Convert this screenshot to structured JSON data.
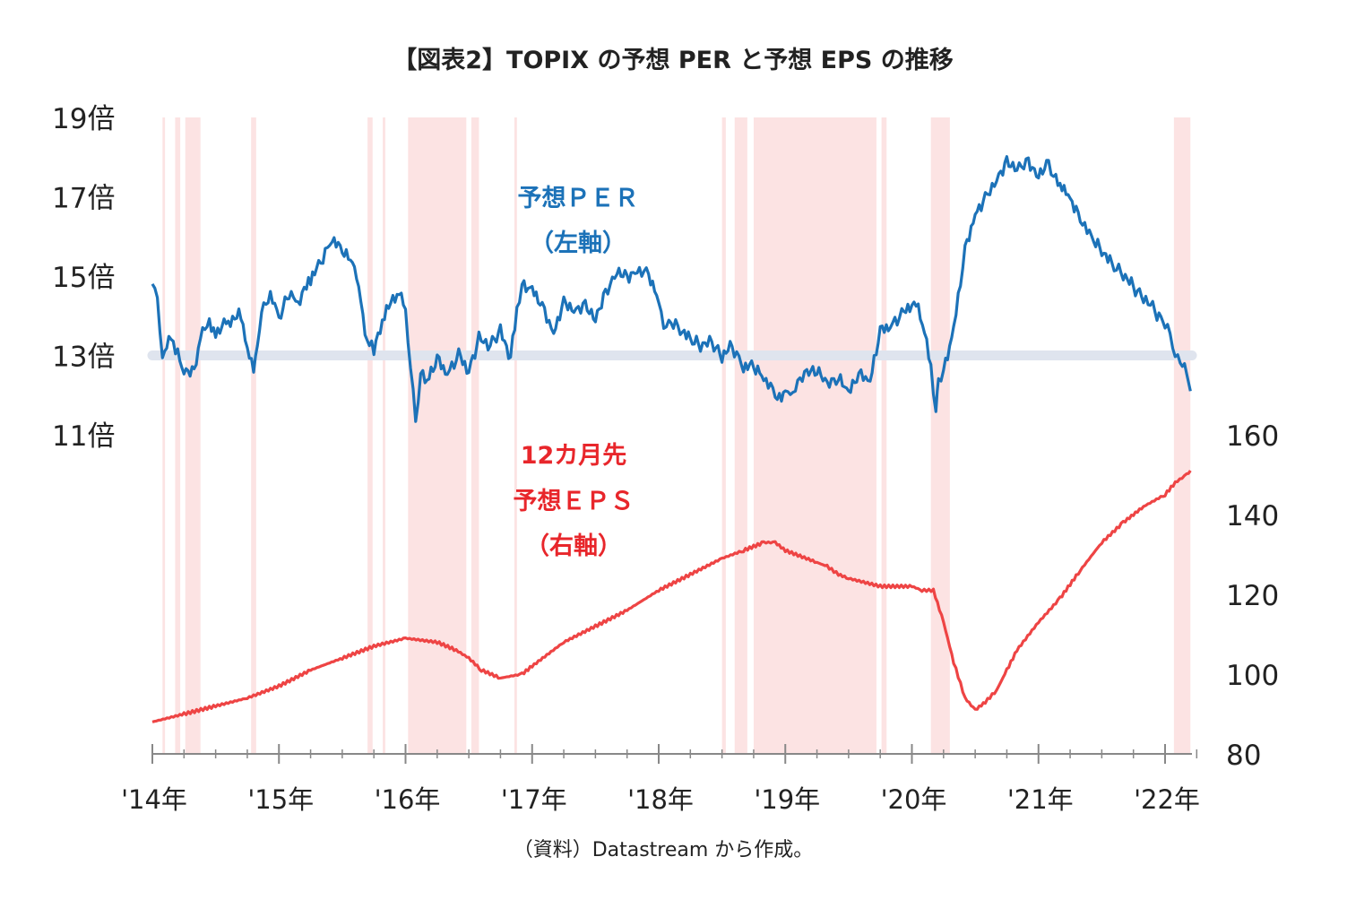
{
  "chart_data": {
    "type": "line",
    "title": "【図表2】TOPIX の予想 PER と予想 EPS の推移",
    "source": "（資料）Datastream から作成。",
    "x_range": [
      "2014-01",
      "2022-03"
    ],
    "x_ticks": [
      "'14年",
      "'15年",
      "'16年",
      "'17年",
      "'18年",
      "'19年",
      "'20年",
      "'21年",
      "'22年"
    ],
    "y_left": {
      "ticks": [
        "19倍",
        "17倍",
        "15倍",
        "13倍",
        "11倍"
      ],
      "ylim": [
        11,
        19
      ]
    },
    "y_right": {
      "ticks": [
        "160",
        "140",
        "120",
        "100",
        "80"
      ],
      "ylim": [
        80,
        160
      ]
    },
    "reference_line": {
      "value": 13,
      "axis": "left",
      "color": "#dfe4ee"
    },
    "annotations": {
      "per": [
        "予想ＰＥＲ",
        "（左軸）"
      ],
      "eps": [
        "12カ月先",
        "予想ＥＰＳ",
        "（右軸）"
      ]
    },
    "colors": {
      "per": "#1c72b8",
      "eps": "#ee4444",
      "shade": "#fbdada",
      "axis": "#888888"
    },
    "series": [
      {
        "key": "per",
        "axis": "left",
        "x": [
          2014.0,
          2014.04,
          2014.08,
          2014.13,
          2014.2,
          2014.25,
          2014.33,
          2014.38,
          2014.45,
          2014.5,
          2014.6,
          2014.7,
          2014.75,
          2014.8,
          2014.83,
          2014.88,
          2014.95,
          2015.0,
          2015.08,
          2015.15,
          2015.25,
          2015.33,
          2015.42,
          2015.5,
          2015.58,
          2015.63,
          2015.68,
          2015.75,
          2015.85,
          2015.95,
          2016.0,
          2016.04,
          2016.08,
          2016.12,
          2016.17,
          2016.25,
          2016.33,
          2016.42,
          2016.5,
          2016.58,
          2016.67,
          2016.75,
          2016.83,
          2016.88,
          2016.92,
          2017.0,
          2017.08,
          2017.17,
          2017.25,
          2017.33,
          2017.42,
          2017.5,
          2017.58,
          2017.67,
          2017.75,
          2017.83,
          2017.92,
          2018.0,
          2018.04,
          2018.08,
          2018.17,
          2018.25,
          2018.33,
          2018.42,
          2018.5,
          2018.58,
          2018.67,
          2018.75,
          2018.83,
          2018.92,
          2018.97,
          2019.0,
          2019.04,
          2019.08,
          2019.17,
          2019.25,
          2019.33,
          2019.42,
          2019.5,
          2019.58,
          2019.67,
          2019.75,
          2019.83,
          2019.92,
          2020.0,
          2020.05,
          2020.1,
          2020.15,
          2020.19,
          2020.21,
          2020.25,
          2020.33,
          2020.42,
          2020.5,
          2020.58,
          2020.67,
          2020.75,
          2020.83,
          2020.92,
          2021.0,
          2021.08,
          2021.12,
          2021.17,
          2021.25,
          2021.33,
          2021.42,
          2021.5,
          2021.58,
          2021.67,
          2021.75,
          2021.83,
          2021.92,
          2022.0,
          2022.04,
          2022.08,
          2022.12,
          2022.17,
          2022.2
        ],
        "values": [
          14.8,
          14.5,
          12.9,
          13.6,
          13.1,
          12.7,
          12.6,
          13.6,
          13.9,
          13.6,
          13.9,
          14.0,
          13.3,
          12.6,
          13.4,
          14.3,
          14.5,
          13.9,
          14.6,
          14.3,
          14.9,
          15.3,
          15.9,
          15.6,
          15.3,
          14.8,
          13.4,
          13.1,
          14.1,
          14.6,
          14.0,
          12.7,
          11.2,
          12.5,
          12.3,
          12.9,
          12.5,
          13.0,
          12.6,
          13.4,
          13.3,
          13.6,
          13.0,
          14.1,
          14.8,
          14.7,
          14.3,
          13.6,
          14.4,
          14.2,
          14.3,
          14.0,
          14.6,
          15.2,
          15.0,
          15.2,
          15.1,
          14.4,
          13.8,
          13.9,
          13.7,
          13.4,
          13.3,
          13.3,
          13.0,
          13.2,
          12.7,
          12.7,
          12.4,
          12.0,
          11.8,
          12.2,
          11.9,
          12.2,
          12.5,
          12.6,
          12.2,
          12.4,
          12.0,
          12.5,
          12.3,
          13.6,
          13.7,
          14.0,
          14.3,
          14.1,
          13.6,
          12.6,
          11.6,
          12.3,
          12.6,
          13.7,
          15.7,
          16.6,
          17.0,
          17.5,
          17.9,
          17.8,
          17.9,
          17.6,
          17.9,
          17.6,
          17.4,
          17.0,
          16.5,
          16.0,
          15.7,
          15.3,
          15.1,
          14.7,
          14.5,
          14.1,
          13.8,
          13.6,
          13.0,
          12.9,
          12.5,
          12.1
        ]
      },
      {
        "key": "eps",
        "axis": "right",
        "x": [
          2014.0,
          2014.25,
          2014.5,
          2014.75,
          2015.0,
          2015.25,
          2015.5,
          2015.75,
          2016.0,
          2016.25,
          2016.4,
          2016.5,
          2016.6,
          2016.75,
          2016.92,
          2017.0,
          2017.25,
          2017.5,
          2017.75,
          2018.0,
          2018.25,
          2018.5,
          2018.67,
          2018.83,
          2018.92,
          2019.0,
          2019.25,
          2019.33,
          2019.42,
          2019.5,
          2019.75,
          2020.0,
          2020.08,
          2020.17,
          2020.25,
          2020.33,
          2020.42,
          2020.5,
          2020.58,
          2020.67,
          2020.75,
          2020.83,
          2021.0,
          2021.17,
          2021.33,
          2021.5,
          2021.67,
          2021.83,
          2022.0,
          2022.08,
          2022.17,
          2022.2
        ],
        "values": [
          88,
          90,
          92,
          94,
          97,
          101,
          104,
          107,
          109,
          108,
          106,
          104,
          101,
          99,
          100,
          102,
          108,
          112,
          116,
          121,
          125,
          129,
          131,
          133,
          133,
          131,
          128,
          127,
          125,
          124,
          122,
          122,
          121,
          121,
          113,
          103,
          94,
          91,
          93,
          96,
          101,
          106,
          113,
          119,
          126,
          133,
          138,
          142,
          145,
          148,
          150,
          151
        ]
      }
    ],
    "shaded_periods": [
      [
        2014.08,
        2014.1
      ],
      [
        2014.18,
        2014.22
      ],
      [
        2014.26,
        2014.38
      ],
      [
        2014.78,
        2014.82
      ],
      [
        2015.7,
        2015.74
      ],
      [
        2015.82,
        2015.84
      ],
      [
        2016.02,
        2016.48
      ],
      [
        2016.52,
        2016.58
      ],
      [
        2016.86,
        2016.88
      ],
      [
        2018.5,
        2018.53
      ],
      [
        2018.6,
        2018.7
      ],
      [
        2018.75,
        2019.72
      ],
      [
        2019.76,
        2019.8
      ],
      [
        2020.15,
        2020.3
      ],
      [
        2022.07,
        2022.2
      ]
    ]
  }
}
